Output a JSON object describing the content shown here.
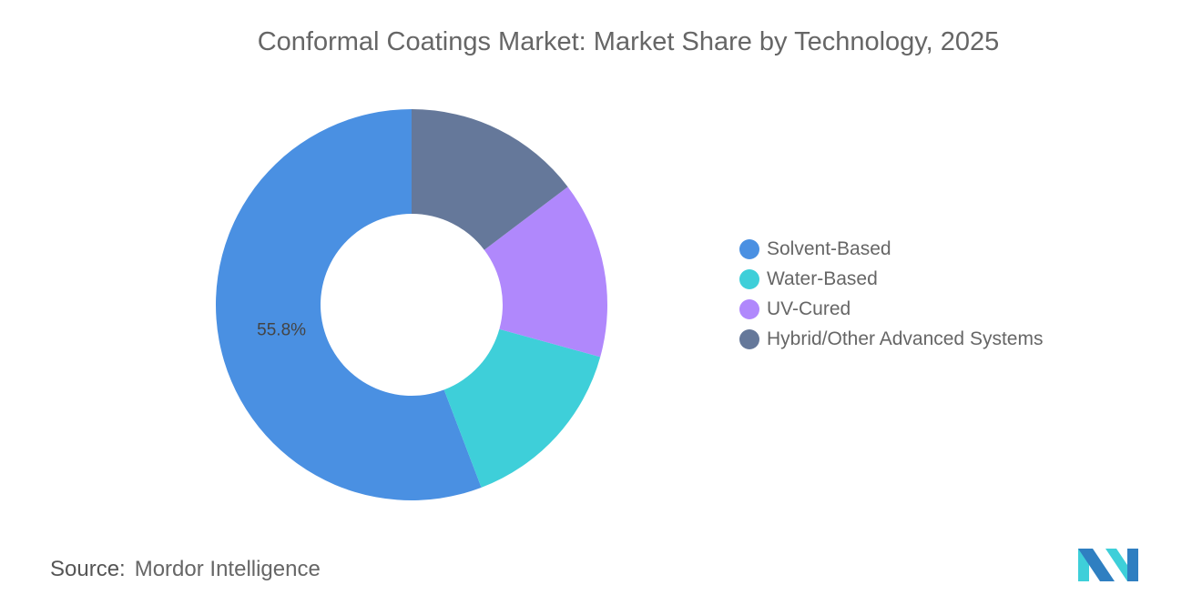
{
  "chart_data": {
    "type": "pie",
    "title": "Conformal Coatings Market: Market Share by Technology, 2025",
    "categories": [
      "Solvent-Based",
      "Water-Based",
      "UV-Cured",
      "Hybrid/Other Advanced Systems"
    ],
    "values": [
      55.8,
      14.9,
      14.6,
      14.7
    ],
    "unit": "%",
    "data_labels": [
      "55.8%"
    ],
    "colors": [
      "#4a90e2",
      "#3ecfd9",
      "#b088fc",
      "#65789a"
    ],
    "donut": true,
    "legend_position": "right"
  },
  "source": {
    "label": "Source:",
    "value": "Mordor Intelligence"
  },
  "logo": {
    "colors": [
      "#2f7fc1",
      "#3ecfd9"
    ]
  }
}
